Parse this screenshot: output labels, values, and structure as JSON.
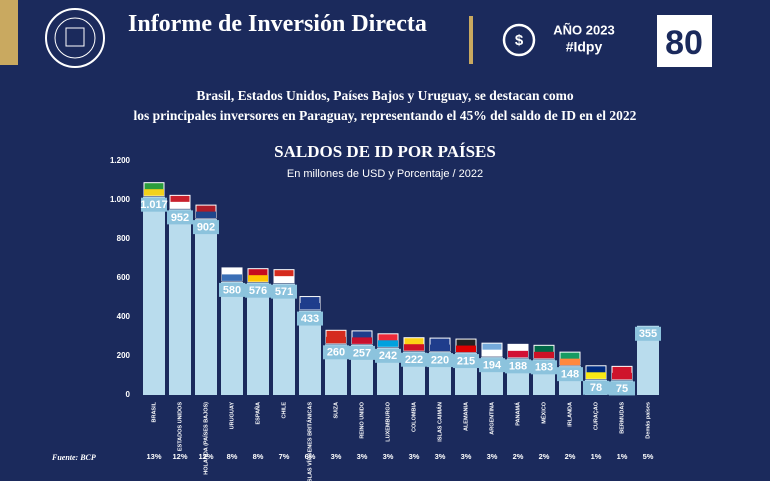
{
  "header": {
    "title": "Informe de Inversión Directa",
    "year": "AÑO 2023",
    "hashtag": "#Idpy",
    "badge": "80"
  },
  "headline": [
    "Brasil, Estados Unidos, Países Bajos y Uruguay, se destacan como",
    "los principales inversores en Paraguay, representando el 45% del saldo de ID en el 2022"
  ],
  "source": "Fuente: BCP",
  "chart_data": {
    "type": "bar",
    "title": "SALDOS DE ID POR PAÍSES",
    "subtitle": "En millones de USD y Porcentaje / 2022",
    "categories": [
      "BRASIL",
      "ESTADOS UNIDOS",
      "HOLANDA (PAÍSES BAJOS)",
      "URUGUAY",
      "ESPAÑA",
      "CHILE",
      "ISLAS VÍRGENES BRITÁNICAS",
      "SUIZA",
      "REINO UNIDO",
      "LUXEMBURGO",
      "COLOMBIA",
      "ISLAS CAIMÁN",
      "ALEMANIA",
      "ARGENTINA",
      "PANAMÁ",
      "MÉXICO",
      "IRLANDA",
      "CURAÇAO",
      "BERMUDAS",
      "Demás países"
    ],
    "values": [
      1017,
      952,
      902,
      580,
      576,
      571,
      433,
      260,
      257,
      242,
      222,
      220,
      215,
      194,
      188,
      183,
      148,
      78,
      75,
      355
    ],
    "value_labels": [
      "1.017",
      "952",
      "902",
      "580",
      "576",
      "571",
      "433",
      "260",
      "257",
      "242",
      "222",
      "220",
      "215",
      "194",
      "188",
      "183",
      "148",
      "78",
      "75",
      "355"
    ],
    "percentages": [
      13,
      12,
      12,
      8,
      8,
      7,
      6,
      3,
      3,
      3,
      3,
      3,
      3,
      3,
      2,
      2,
      2,
      1,
      1,
      5
    ],
    "percentage_labels": [
      "13%",
      "12%",
      "12%",
      "8%",
      "8%",
      "7%",
      "6%",
      "3%",
      "3%",
      "3%",
      "3%",
      "3%",
      "3%",
      "3%",
      "2%",
      "2%",
      "2%",
      "1%",
      "1%",
      "5%"
    ],
    "color": "#b9dced",
    "ylim": [
      0,
      1200
    ],
    "yticks": [
      0,
      200,
      400,
      600,
      800,
      {
        "value": 1000,
        "label": "1.000"
      },
      {
        "value": 1200,
        "label": "1.200"
      }
    ]
  }
}
